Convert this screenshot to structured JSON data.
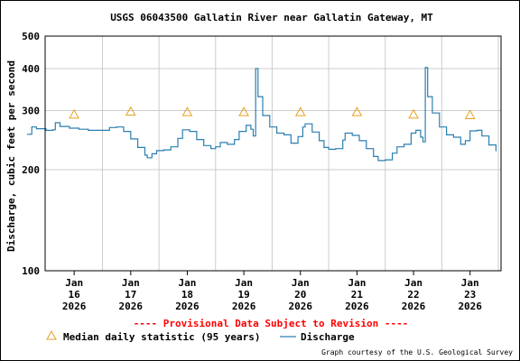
{
  "chart_data": {
    "type": "line",
    "title": "USGS 06043500 Gallatin River near Gallatin Gateway, MT",
    "ylabel": "Discharge, cubic feet per second",
    "xlabel": "",
    "y_scale": "log",
    "ylim": [
      100,
      500
    ],
    "y_ticks": [
      100,
      200,
      300,
      400,
      500
    ],
    "y_tick_labels": [
      "100",
      "200",
      "300",
      "400",
      "500"
    ],
    "x_ticks": [
      {
        "date": "2026-01-16",
        "label": [
          "Jan",
          "16",
          "2026"
        ]
      },
      {
        "date": "2026-01-17",
        "label": [
          "Jan",
          "17",
          "2026"
        ]
      },
      {
        "date": "2026-01-18",
        "label": [
          "Jan",
          "18",
          "2026"
        ]
      },
      {
        "date": "2026-01-19",
        "label": [
          "Jan",
          "19",
          "2026"
        ]
      },
      {
        "date": "2026-01-20",
        "label": [
          "Jan",
          "20",
          "2026"
        ]
      },
      {
        "date": "2026-01-21",
        "label": [
          "Jan",
          "21",
          "2026"
        ]
      },
      {
        "date": "2026-01-22",
        "label": [
          "Jan",
          "22",
          "2026"
        ]
      },
      {
        "date": "2026-01-23",
        "label": [
          "Jan",
          "23",
          "2026"
        ]
      }
    ],
    "grid": true,
    "provisional_note": "---- Provisional Data Subject to Revision ----",
    "credit": "Graph courtesy of the U.S. Geological Survey",
    "series": [
      {
        "name": "Discharge",
        "color": "#2a7fb0",
        "points": [
          [
            "2026-01-15 04:00",
            255
          ],
          [
            "2026-01-15 06:00",
            268
          ],
          [
            "2026-01-15 08:00",
            265
          ],
          [
            "2026-01-15 12:00",
            262
          ],
          [
            "2026-01-15 15:00",
            263
          ],
          [
            "2026-01-15 16:00",
            276
          ],
          [
            "2026-01-15 18:00",
            269
          ],
          [
            "2026-01-15 22:00",
            266
          ],
          [
            "2026-01-16 02:00",
            264
          ],
          [
            "2026-01-16 06:00",
            262
          ],
          [
            "2026-01-16 10:00",
            262
          ],
          [
            "2026-01-16 13:00",
            262
          ],
          [
            "2026-01-16 15:00",
            267
          ],
          [
            "2026-01-16 18:00",
            268
          ],
          [
            "2026-01-16 21:00",
            260
          ],
          [
            "2026-01-17 00:00",
            247
          ],
          [
            "2026-01-17 03:00",
            233
          ],
          [
            "2026-01-17 06:00",
            221
          ],
          [
            "2026-01-17 07:00",
            217
          ],
          [
            "2026-01-17 09:00",
            223
          ],
          [
            "2026-01-17 11:00",
            228
          ],
          [
            "2026-01-17 14:00",
            229
          ],
          [
            "2026-01-17 17:00",
            234
          ],
          [
            "2026-01-17 20:00",
            248
          ],
          [
            "2026-01-17 22:00",
            263
          ],
          [
            "2026-01-18 01:00",
            260
          ],
          [
            "2026-01-18 04:00",
            246
          ],
          [
            "2026-01-18 07:00",
            236
          ],
          [
            "2026-01-18 10:00",
            231
          ],
          [
            "2026-01-18 12:00",
            234
          ],
          [
            "2026-01-18 14:00",
            241
          ],
          [
            "2026-01-18 17:00",
            238
          ],
          [
            "2026-01-18 20:00",
            246
          ],
          [
            "2026-01-18 22:00",
            260
          ],
          [
            "2026-01-19 01:00",
            271
          ],
          [
            "2026-01-19 03:00",
            264
          ],
          [
            "2026-01-19 04:00",
            252
          ],
          [
            "2026-01-19 05:00",
            400
          ],
          [
            "2026-01-19 06:00",
            330
          ],
          [
            "2026-01-19 08:00",
            290
          ],
          [
            "2026-01-19 11:00",
            268
          ],
          [
            "2026-01-19 14:00",
            257
          ],
          [
            "2026-01-19 17:00",
            254
          ],
          [
            "2026-01-19 20:00",
            240
          ],
          [
            "2026-01-19 23:00",
            251
          ],
          [
            "2026-01-20 01:00",
            268
          ],
          [
            "2026-01-20 02:00",
            274
          ],
          [
            "2026-01-20 05:00",
            259
          ],
          [
            "2026-01-20 08:00",
            244
          ],
          [
            "2026-01-20 10:00",
            233
          ],
          [
            "2026-01-20 12:00",
            230
          ],
          [
            "2026-01-20 15:00",
            231
          ],
          [
            "2026-01-20 18:00",
            245
          ],
          [
            "2026-01-20 19:00",
            257
          ],
          [
            "2026-01-20 22:00",
            253
          ],
          [
            "2026-01-21 01:00",
            244
          ],
          [
            "2026-01-21 04:00",
            231
          ],
          [
            "2026-01-21 07:00",
            219
          ],
          [
            "2026-01-21 09:00",
            213
          ],
          [
            "2026-01-21 12:00",
            214
          ],
          [
            "2026-01-21 15:00",
            224
          ],
          [
            "2026-01-21 17:00",
            234
          ],
          [
            "2026-01-21 20:00",
            238
          ],
          [
            "2026-01-21 23:00",
            257
          ],
          [
            "2026-01-22 01:00",
            262
          ],
          [
            "2026-01-22 03:00",
            250
          ],
          [
            "2026-01-22 04:00",
            242
          ],
          [
            "2026-01-22 05:00",
            403
          ],
          [
            "2026-01-22 06:00",
            330
          ],
          [
            "2026-01-22 08:00",
            295
          ],
          [
            "2026-01-22 11:00",
            268
          ],
          [
            "2026-01-22 14:00",
            254
          ],
          [
            "2026-01-22 17:00",
            250
          ],
          [
            "2026-01-22 20:00",
            238
          ],
          [
            "2026-01-22 22:00",
            244
          ],
          [
            "2026-01-23 00:00",
            261
          ],
          [
            "2026-01-23 03:00",
            262
          ],
          [
            "2026-01-23 05:00",
            252
          ],
          [
            "2026-01-23 08:00",
            237
          ],
          [
            "2026-01-23 11:00",
            227
          ]
        ]
      },
      {
        "name": "Median daily statistic (95 years)",
        "marker": "triangle",
        "color": "#e8a020",
        "points": [
          [
            "2026-01-16 00:00",
            292
          ],
          [
            "2026-01-17 00:00",
            298
          ],
          [
            "2026-01-18 00:00",
            297
          ],
          [
            "2026-01-19 00:00",
            297
          ],
          [
            "2026-01-20 00:00",
            297
          ],
          [
            "2026-01-21 00:00",
            297
          ],
          [
            "2026-01-22 00:00",
            292
          ],
          [
            "2026-01-23 00:00",
            291
          ]
        ]
      }
    ]
  },
  "colors": {
    "title_text": "#000000",
    "note_text": "#ff0000",
    "discharge_line": "#2a7fb0",
    "median_marker": "#e8a020",
    "grid": "#cccccc"
  }
}
